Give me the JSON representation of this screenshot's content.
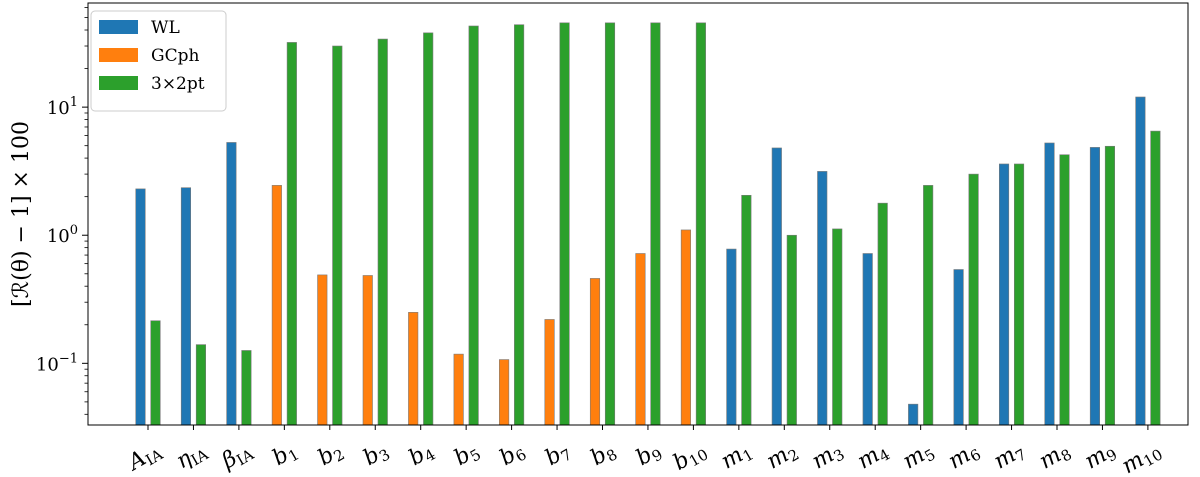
{
  "chart_data": {
    "type": "bar",
    "title": "",
    "xlabel": "",
    "ylabel": "[ℛ(θ) − 1] × 100",
    "yscale": "log",
    "ylim": [
      0.033,
      65
    ],
    "yticks": [
      {
        "value": 0.1,
        "base": "10",
        "exp": "−1"
      },
      {
        "value": 1,
        "base": "10",
        "exp": "0"
      },
      {
        "value": 10,
        "base": "10",
        "exp": "1"
      }
    ],
    "grid": false,
    "legend_position": "top-left",
    "categories": [
      {
        "main": "A",
        "sub": "IA"
      },
      {
        "main": "η",
        "sub": "IA"
      },
      {
        "main": "β",
        "sub": "IA"
      },
      {
        "main": "b",
        "sub": "1"
      },
      {
        "main": "b",
        "sub": "2"
      },
      {
        "main": "b",
        "sub": "3"
      },
      {
        "main": "b",
        "sub": "4"
      },
      {
        "main": "b",
        "sub": "5"
      },
      {
        "main": "b",
        "sub": "6"
      },
      {
        "main": "b",
        "sub": "7"
      },
      {
        "main": "b",
        "sub": "8"
      },
      {
        "main": "b",
        "sub": "9"
      },
      {
        "main": "b",
        "sub": "10"
      },
      {
        "main": "m",
        "sub": "1"
      },
      {
        "main": "m",
        "sub": "2"
      },
      {
        "main": "m",
        "sub": "3"
      },
      {
        "main": "m",
        "sub": "4"
      },
      {
        "main": "m",
        "sub": "5"
      },
      {
        "main": "m",
        "sub": "6"
      },
      {
        "main": "m",
        "sub": "7"
      },
      {
        "main": "m",
        "sub": "8"
      },
      {
        "main": "m",
        "sub": "9"
      },
      {
        "main": "m",
        "sub": "10"
      }
    ],
    "series": [
      {
        "name": "WL",
        "color": "#1f77b4",
        "values": [
          2.3,
          2.35,
          5.3,
          null,
          null,
          null,
          null,
          null,
          null,
          null,
          null,
          null,
          null,
          0.78,
          4.8,
          3.15,
          0.72,
          0.048,
          0.54,
          3.6,
          5.25,
          4.85,
          12.0
        ]
      },
      {
        "name": "GCph",
        "color": "#ff7f0e",
        "values": [
          null,
          null,
          null,
          2.45,
          0.49,
          0.485,
          0.25,
          0.118,
          0.107,
          0.22,
          0.46,
          0.72,
          1.1,
          null,
          null,
          null,
          null,
          null,
          null,
          null,
          null,
          null,
          null
        ]
      },
      {
        "name": "3×2pt",
        "color": "#2ca02c",
        "values": [
          0.215,
          0.14,
          0.126,
          32.0,
          30.0,
          34.0,
          38.0,
          43.0,
          44.0,
          45.5,
          45.5,
          45.5,
          45.5,
          2.05,
          1.0,
          1.12,
          1.78,
          2.45,
          3.0,
          3.6,
          4.25,
          4.95,
          6.5
        ]
      }
    ]
  }
}
